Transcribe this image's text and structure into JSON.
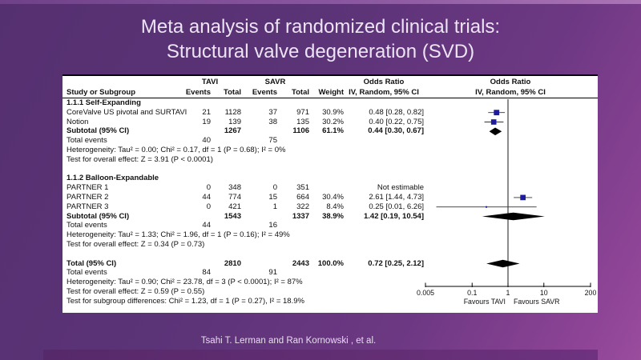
{
  "slide": {
    "title_line1": "Meta analysis of randomized clinical trials:",
    "title_line2": "Structural valve degeneration (SVD)",
    "footer": "Tsahi T. Lerman and Ran Kornowski , et al.",
    "colors": {
      "background_purple": "#5b3377",
      "panel_white": "#ffffff",
      "marker_blue": "#1c1c9c",
      "diamond_black": "#000000",
      "title_text": "#ece4f4"
    }
  },
  "chart_data": {
    "type": "forest_plot",
    "effect_measure": "Odds Ratio",
    "model": "IV, Random, 95% CI",
    "header": {
      "study": "Study or Subgroup",
      "group1": "TAVI",
      "group2": "SAVR",
      "events1": "Events",
      "total1": "Total",
      "events2": "Events",
      "total2": "Total",
      "weight": "Weight",
      "method1": "IV, Random, 95% CI",
      "or_title1": "Odds Ratio",
      "or_title2": "Odds Ratio",
      "method2": "IV, Random, 95% CI"
    },
    "axis": {
      "scale": "log",
      "min": 0.005,
      "max": 200,
      "ticks": [
        0.005,
        0.1,
        1,
        10,
        200
      ],
      "tick_labels": [
        "0.005",
        "0.1",
        "1",
        "10",
        "200"
      ],
      "favours_left": "Favours TAVI",
      "favours_right": "Favours SAVR"
    },
    "rows": [
      {
        "type": "group",
        "label": "1.1.1 Self-Expanding"
      },
      {
        "type": "study",
        "label": "CoreValve US pivotal and SURTAVI",
        "e1": "21",
        "t1": "1128",
        "e2": "37",
        "t2": "971",
        "weight": "30.9%",
        "or_text": "0.48 [0.28, 0.82]",
        "est": 0.48,
        "lo": 0.28,
        "hi": 0.82,
        "weight_pct": 30.9
      },
      {
        "type": "study",
        "label": "Notion",
        "e1": "19",
        "t1": "139",
        "e2": "38",
        "t2": "135",
        "weight": "30.2%",
        "or_text": "0.40 [0.22, 0.75]",
        "est": 0.4,
        "lo": 0.22,
        "hi": 0.75,
        "weight_pct": 30.2
      },
      {
        "type": "subtotal",
        "label": "Subtotal (95% CI)",
        "t1": "1267",
        "t2": "1106",
        "weight": "61.1%",
        "or_text": "0.44 [0.30, 0.67]",
        "est": 0.44,
        "lo": 0.3,
        "hi": 0.67
      },
      {
        "type": "text",
        "label": "Total events",
        "e1": "40",
        "e2": "75"
      },
      {
        "type": "text",
        "label": "Heterogeneity: Tau² = 0.00; Chi² = 0.17, df = 1 (P = 0.68); I² = 0%"
      },
      {
        "type": "text",
        "label": "Test for overall effect: Z = 3.91 (P < 0.0001)"
      },
      {
        "type": "blank"
      },
      {
        "type": "group",
        "label": "1.1.2 Balloon-Expandable"
      },
      {
        "type": "study",
        "label": "PARTNER 1",
        "e1": "0",
        "t1": "348",
        "e2": "0",
        "t2": "351",
        "weight": "",
        "or_text": "Not estimable"
      },
      {
        "type": "study",
        "label": "PARTNER 2",
        "e1": "44",
        "t1": "774",
        "e2": "15",
        "t2": "664",
        "weight": "30.4%",
        "or_text": "2.61 [1.44, 4.73]",
        "est": 2.61,
        "lo": 1.44,
        "hi": 4.73,
        "weight_pct": 30.4
      },
      {
        "type": "study",
        "label": "PARTNER 3",
        "e1": "0",
        "t1": "421",
        "e2": "1",
        "t2": "322",
        "weight": "8.4%",
        "or_text": "0.25 [0.01, 6.26]",
        "est": 0.25,
        "lo": 0.01,
        "hi": 6.26,
        "weight_pct": 8.4
      },
      {
        "type": "subtotal",
        "label": "Subtotal (95% CI)",
        "t1": "1543",
        "t2": "1337",
        "weight": "38.9%",
        "or_text": "1.42 [0.19, 10.54]",
        "est": 1.42,
        "lo": 0.19,
        "hi": 10.54
      },
      {
        "type": "text",
        "label": "Total events",
        "e1": "44",
        "e2": "16"
      },
      {
        "type": "text",
        "label": "Heterogeneity: Tau² = 1.33; Chi² = 1.96, df = 1 (P = 0.16); I² = 49%"
      },
      {
        "type": "text",
        "label": "Test for overall effect: Z = 0.34 (P = 0.73)"
      },
      {
        "type": "blank"
      },
      {
        "type": "subtotal",
        "label": "Total (95% CI)",
        "t1": "2810",
        "t2": "2443",
        "weight": "100.0%",
        "or_text": "0.72 [0.25, 2.12]",
        "est": 0.72,
        "lo": 0.25,
        "hi": 2.12
      },
      {
        "type": "text",
        "label": "Total events",
        "e1": "84",
        "e2": "91"
      },
      {
        "type": "text",
        "label": "Heterogeneity: Tau² = 0.90; Chi² = 23.78, df = 3 (P < 0.0001); I² = 87%"
      },
      {
        "type": "text",
        "label": "Test for overall effect: Z = 0.59 (P = 0.55)"
      },
      {
        "type": "text",
        "label": "Test for subgroup differences: Chi² = 1.23, df = 1 (P = 0.27), I² = 18.9%"
      }
    ]
  }
}
